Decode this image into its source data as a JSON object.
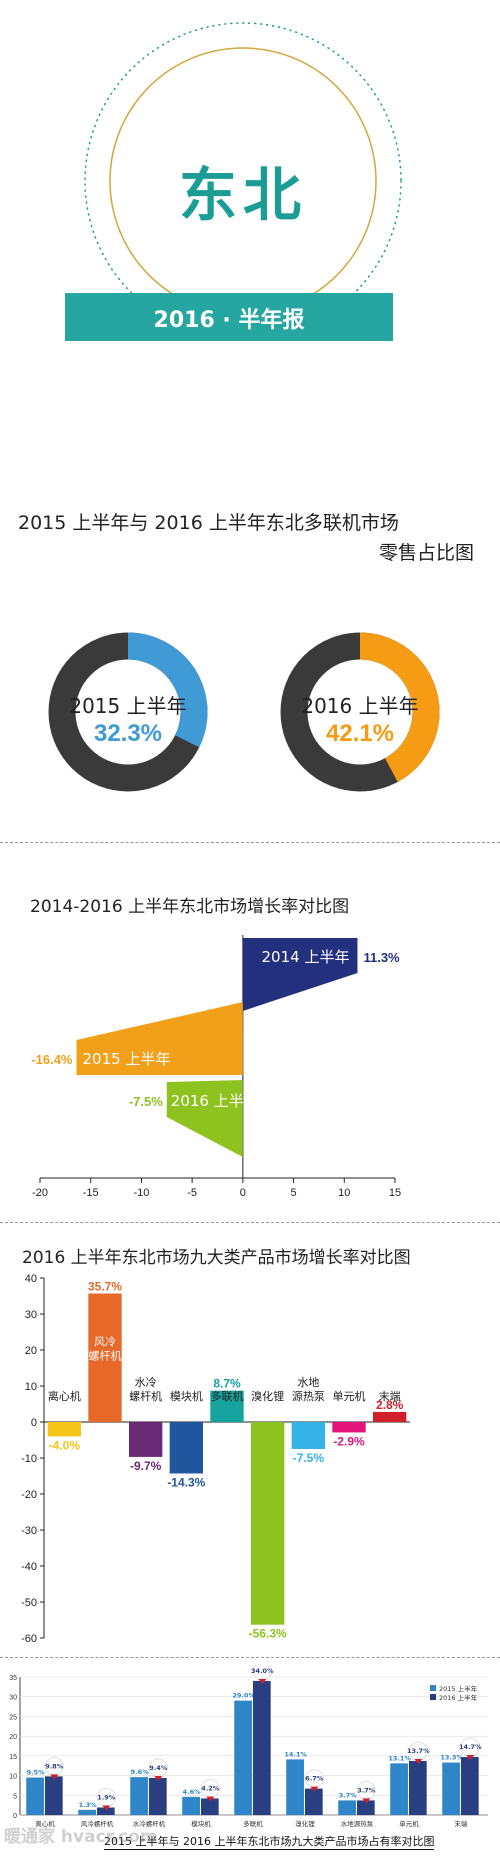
{
  "header": {
    "title": "东北",
    "banner": "2016 · 半年报",
    "colors": {
      "teal": "#1b9c94",
      "banner": "#26a6a0",
      "ring_gold": "#d2a73f"
    }
  },
  "section1": {
    "title_line1": "2015 上半年与 2016 上半年东北多联机市场",
    "title_line2": "零售占比图",
    "donuts": [
      {
        "label": "2015 上半年",
        "value_text": "32.3%",
        "value": 32.3,
        "color": "#3f9ad6"
      },
      {
        "label": "2016 上半年",
        "value_text": "42.1%",
        "value": 42.1,
        "color": "#f59b14"
      }
    ],
    "track_color": "#3a3a3a"
  },
  "section2": {
    "title": "2014-2016 上半年东北市场增长率对比图",
    "value_labels": [
      "11.3%",
      "-16.4%",
      "-7.5%"
    ]
  },
  "section3": {
    "title": "2016 上半年东北市场九大类产品市场增长率对比图",
    "value_labels": [
      "-4.0%",
      "35.7%",
      "-9.7%",
      "-14.3%",
      "8.7%",
      "-56.3%",
      "-7.5%",
      "-2.9%",
      "2.8%"
    ]
  },
  "section4": {
    "caption": "2015 上半年与 2016 上半年东北市场九大类产品市场占有率对比图",
    "legend": [
      "2015 上半年",
      "2016 上半年"
    ],
    "watermark": "暖通家 hvacr.com",
    "value_labels_2015": [
      "9.5%",
      "1.3%",
      "9.6%",
      "4.6%",
      "29.0%",
      "14.1%",
      "3.7%",
      "13.1%",
      "13.3%"
    ],
    "value_labels_2016": [
      "9.8%",
      "1.9%",
      "9.4%",
      "4.2%",
      "34.0%",
      "6.7%",
      "3.7%",
      "13.7%",
      "14.7%"
    ]
  },
  "chart_data": [
    {
      "type": "pie",
      "title": "2015 上半年与 2016 上半年东北多联机市场零售占比图",
      "categories": [
        "2015 上半年",
        "2016 上半年"
      ],
      "values": [
        32.3,
        42.1
      ]
    },
    {
      "type": "bar",
      "title": "2014-2016 上半年东北市场增长率对比图",
      "orientation": "horizontal",
      "categories": [
        "2014 上半年",
        "2015 上半年",
        "2016 上半年"
      ],
      "values": [
        11.3,
        -16.4,
        -7.5
      ],
      "colors": [
        "#23307e",
        "#f2a019",
        "#8dc21f"
      ],
      "xlim": [
        -20,
        15
      ],
      "xticks": [
        -20,
        -15,
        -10,
        -5,
        0,
        5,
        10,
        15
      ]
    },
    {
      "type": "bar",
      "title": "2016 上半年东北市场九大类产品市场增长率对比图",
      "categories": [
        "离心机",
        "风冷螺杆机",
        "水冷螺杆机",
        "模块机",
        "多联机",
        "溴化锂",
        "水地源热泵",
        "单元机",
        "末端"
      ],
      "values": [
        -4.0,
        35.7,
        -9.7,
        -14.3,
        8.7,
        -56.3,
        -7.5,
        -2.9,
        2.8
      ],
      "colors": [
        "#f5c518",
        "#e7692a",
        "#6a2a76",
        "#21569f",
        "#16a29d",
        "#8dc21f",
        "#35b3e8",
        "#e4157a",
        "#d11f2a"
      ],
      "ylim": [
        -60,
        40
      ],
      "yticks": [
        40,
        30,
        20,
        10,
        0,
        -10,
        -20,
        -30,
        -40,
        -50,
        -60
      ]
    },
    {
      "type": "bar",
      "title": "2015 上半年与 2016 上半年东北市场九大类产品市场占有率对比图",
      "categories": [
        "离心机",
        "风冷螺杆机",
        "水冷螺杆机",
        "模块机",
        "多联机",
        "溴化锂",
        "水地源热泵",
        "单元机",
        "末端"
      ],
      "series": [
        {
          "name": "2015 上半年",
          "values": [
            9.5,
            1.3,
            9.6,
            4.6,
            29.0,
            14.1,
            3.7,
            13.1,
            13.3
          ],
          "color": "#2e86c9"
        },
        {
          "name": "2016 上半年",
          "values": [
            9.8,
            1.9,
            9.4,
            4.2,
            34.0,
            6.7,
            3.7,
            13.7,
            14.7
          ],
          "color": "#2a3f82"
        }
      ],
      "ylim": [
        0,
        35
      ],
      "yticks": [
        35,
        30,
        25,
        20,
        15,
        10,
        5,
        0
      ]
    }
  ]
}
